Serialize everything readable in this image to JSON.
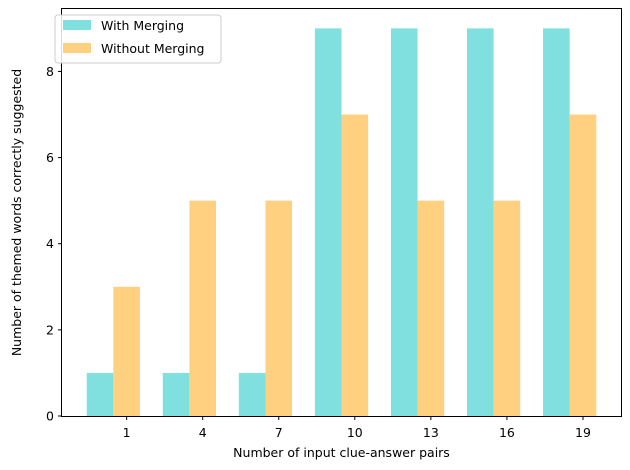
{
  "chart_data": {
    "type": "bar",
    "xlabel": "Number of input clue-answer pairs",
    "ylabel": "Number of themed words correctly suggested",
    "categories": [
      "1",
      "4",
      "7",
      "10",
      "13",
      "16",
      "19"
    ],
    "series": [
      {
        "name": "With Merging",
        "values": [
          1,
          1,
          1,
          9,
          9,
          9,
          9
        ],
        "color": "#80dfdf"
      },
      {
        "name": "Without Merging",
        "values": [
          3,
          5,
          5,
          7,
          5,
          5,
          7
        ],
        "color": "#ffd080"
      }
    ],
    "ylim": [
      0,
      9.45
    ],
    "yticks": [
      "0",
      "2",
      "4",
      "6",
      "8"
    ],
    "grid": false,
    "legend": "top-left"
  }
}
